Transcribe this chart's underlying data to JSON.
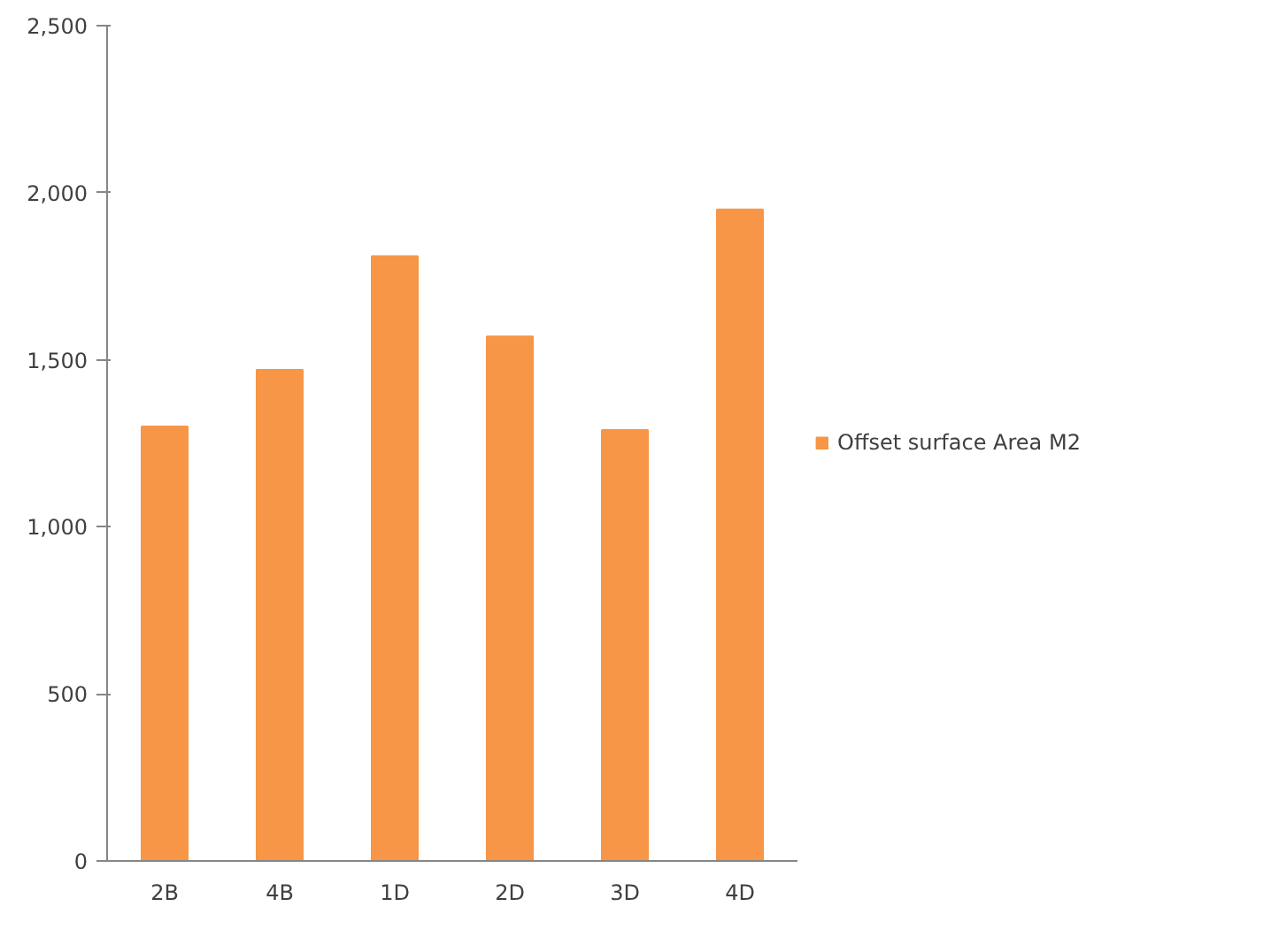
{
  "chart_data": {
    "type": "bar",
    "categories": [
      "2B",
      "4B",
      "1D",
      "2D",
      "3D",
      "4D"
    ],
    "series": [
      {
        "name": "Offset surface Area M2",
        "color": "#f79646",
        "values": [
          1300,
          1470,
          1810,
          1570,
          1290,
          1950
        ]
      }
    ],
    "ylim": [
      0,
      2500
    ],
    "yticks": [
      {
        "value": 0,
        "label": "0"
      },
      {
        "value": 500,
        "label": "500"
      },
      {
        "value": 1000,
        "label": "1,000"
      },
      {
        "value": 1500,
        "label": "1,500"
      },
      {
        "value": 2000,
        "label": "2,000"
      },
      {
        "value": 2500,
        "label": "2,500"
      }
    ],
    "grid": false,
    "legend": "right"
  }
}
